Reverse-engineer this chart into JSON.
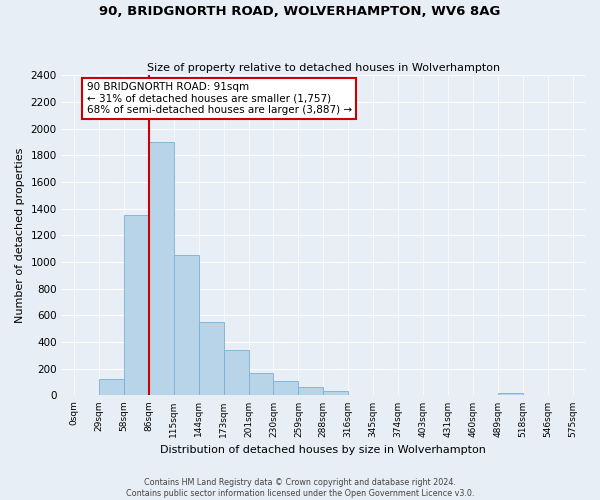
{
  "title": "90, BRIDGNORTH ROAD, WOLVERHAMPTON, WV6 8AG",
  "subtitle": "Size of property relative to detached houses in Wolverhampton",
  "xlabel": "Distribution of detached houses by size in Wolverhampton",
  "ylabel": "Number of detached properties",
  "footer_line1": "Contains HM Land Registry data © Crown copyright and database right 2024.",
  "footer_line2": "Contains public sector information licensed under the Open Government Licence v3.0.",
  "bin_labels": [
    "0sqm",
    "29sqm",
    "58sqm",
    "86sqm",
    "115sqm",
    "144sqm",
    "173sqm",
    "201sqm",
    "230sqm",
    "259sqm",
    "288sqm",
    "316sqm",
    "345sqm",
    "374sqm",
    "403sqm",
    "431sqm",
    "460sqm",
    "489sqm",
    "518sqm",
    "546sqm",
    "575sqm"
  ],
  "bar_values": [
    0,
    125,
    1350,
    1900,
    1050,
    550,
    340,
    165,
    110,
    60,
    30,
    0,
    0,
    0,
    0,
    0,
    0,
    20,
    0,
    0,
    15
  ],
  "bar_color": "#b8d4e8",
  "bar_edge_color": "#7aafd4",
  "vline_color": "#cc0000",
  "annotation_title": "90 BRIDGNORTH ROAD: 91sqm",
  "annotation_line2": "← 31% of detached houses are smaller (1,757)",
  "annotation_line3": "68% of semi-detached houses are larger (3,887) →",
  "annotation_box_color": "#ffffff",
  "annotation_box_edge": "#cc0000",
  "ylim": [
    0,
    2400
  ],
  "yticks": [
    0,
    200,
    400,
    600,
    800,
    1000,
    1200,
    1400,
    1600,
    1800,
    2000,
    2200,
    2400
  ],
  "background_color": "#e8eef5",
  "plot_bg_color": "#e8eef5",
  "grid_color": "#ffffff"
}
